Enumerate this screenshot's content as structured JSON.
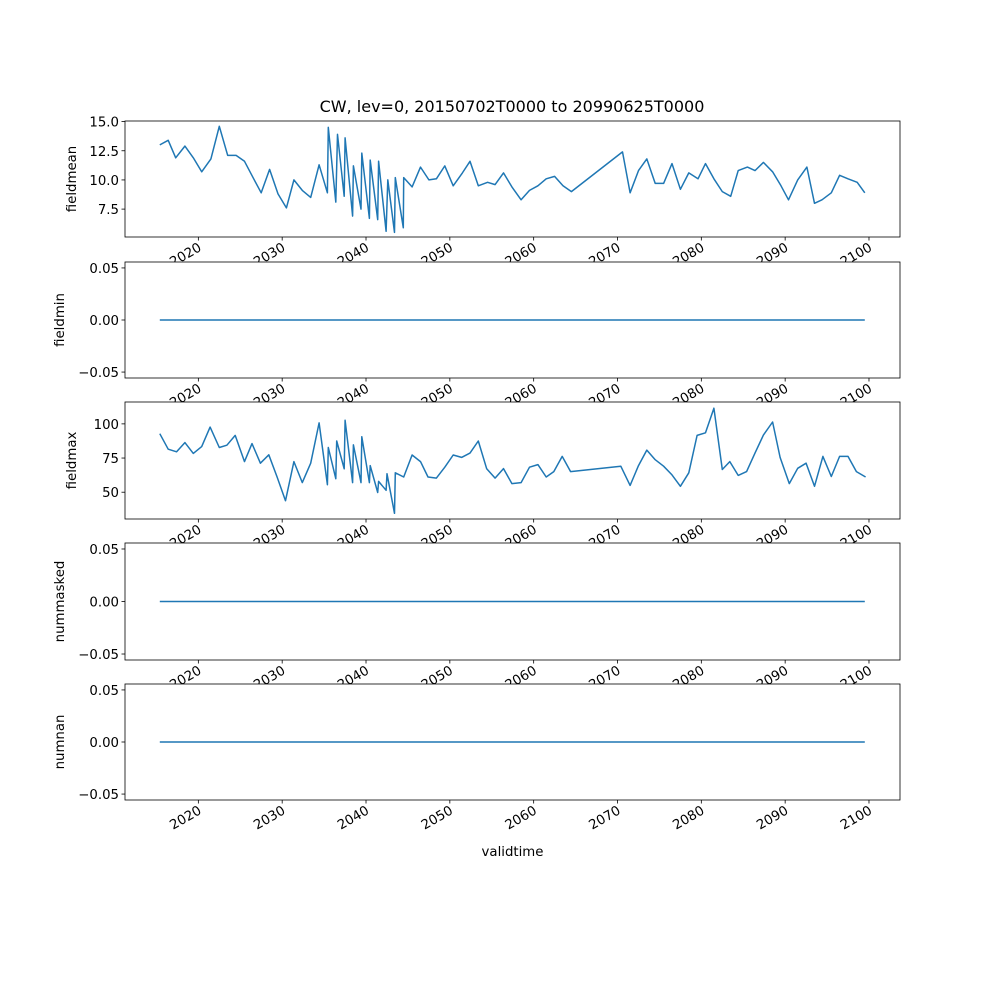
{
  "chart_data": {
    "type": "line",
    "title": "CW, lev=0, 20150702T0000 to 20990625T0000",
    "xlabel": "validtime",
    "xlim": [
      2011.25,
      2103.7
    ],
    "xticks": [
      2020,
      2030,
      2040,
      2050,
      2060,
      2070,
      2080,
      2090,
      2100
    ],
    "xtick_labels": [
      "2020",
      "2030",
      "2040",
      "2050",
      "2060",
      "2070",
      "2080",
      "2090",
      "2100"
    ],
    "line_color": "#1f77b4",
    "panels": [
      {
        "ylabel": "fieldmean",
        "ylim": [
          5.11,
          15.05
        ],
        "yticks": [
          7.5,
          10.0,
          12.5,
          15.0
        ],
        "ytick_labels": [
          "7.5",
          "10.0",
          "12.5",
          "15.0"
        ],
        "x": [
          2015.4,
          2016.4,
          2017.3,
          2018.4,
          2019.4,
          2020.4,
          2021.5,
          2022.5,
          2023.5,
          2024.5,
          2025.5,
          2026.6,
          2027.5,
          2028.5,
          2029.5,
          2030.5,
          2031.4,
          2032.4,
          2033.4,
          2034.4,
          2035.4,
          2035.5,
          2036.4,
          2036.6,
          2037.4,
          2037.5,
          2038.4,
          2038.5,
          2039.4,
          2039.5,
          2040.4,
          2040.5,
          2041.4,
          2041.5,
          2042.4,
          2042.6,
          2043.4,
          2043.5,
          2044.45,
          2044.5,
          2045.5,
          2046.5,
          2047.5,
          2048.4,
          2049.4,
          2050.4,
          2051.5,
          2052.4,
          2053.4,
          2054.5,
          2055.4,
          2056.4,
          2057.4,
          2058.5,
          2059.5,
          2060.5,
          2061.5,
          2062.5,
          2063.5,
          2064.5,
          2070.6,
          2071.5,
          2072.5,
          2073.5,
          2074.5,
          2075.5,
          2076.5,
          2077.5,
          2078.5,
          2079.6,
          2080.5,
          2081.5,
          2082.5,
          2083.5,
          2084.4,
          2085.5,
          2086.4,
          2087.4,
          2088.5,
          2089.5,
          2090.4,
          2091.5,
          2092.6,
          2093.5,
          2094.4,
          2095.5,
          2096.5,
          2097.5,
          2098.6,
          2099.5
        ],
        "y": [
          13.0,
          13.4,
          11.9,
          12.9,
          11.9,
          10.7,
          11.8,
          14.6,
          12.1,
          12.1,
          11.6,
          10.1,
          8.9,
          10.9,
          8.8,
          7.6,
          10.0,
          9.1,
          8.5,
          11.3,
          8.9,
          14.5,
          8.1,
          13.9,
          8.6,
          13.6,
          6.9,
          11.2,
          7.5,
          12.3,
          6.7,
          11.7,
          6.6,
          11.6,
          5.6,
          10.0,
          5.5,
          10.2,
          5.9,
          10.2,
          9.4,
          11.1,
          10.0,
          10.1,
          11.2,
          9.5,
          10.6,
          11.6,
          9.5,
          9.8,
          9.6,
          10.6,
          9.4,
          8.3,
          9.1,
          9.5,
          10.1,
          10.3,
          9.5,
          9.0,
          12.4,
          8.9,
          10.8,
          11.8,
          9.7,
          9.7,
          11.4,
          9.2,
          10.6,
          10.1,
          11.4,
          10.1,
          9.0,
          8.6,
          10.8,
          11.1,
          10.8,
          11.5,
          10.7,
          9.5,
          8.3,
          10.0,
          11.1,
          8.0,
          8.3,
          8.9,
          10.4,
          10.1,
          9.8,
          8.9
        ]
      },
      {
        "ylabel": "fieldmin",
        "ylim": [
          -0.0557,
          0.0557
        ],
        "yticks": [
          -0.05,
          0.0,
          0.05
        ],
        "ytick_labels": [
          "−0.05",
          "0.00",
          "0.05"
        ],
        "x": [
          2015.4,
          2099.5
        ],
        "y": [
          0,
          0
        ]
      },
      {
        "ylabel": "fieldmax",
        "ylim": [
          30.4,
          116.0
        ],
        "yticks": [
          50,
          75,
          100
        ],
        "ytick_labels": [
          "50",
          "75",
          "100"
        ],
        "x": [
          2015.4,
          2016.4,
          2017.4,
          2018.4,
          2019.4,
          2020.4,
          2021.4,
          2022.5,
          2023.4,
          2024.4,
          2025.5,
          2026.4,
          2027.4,
          2028.4,
          2029.4,
          2030.4,
          2031.4,
          2032.4,
          2033.4,
          2034.4,
          2035.4,
          2035.5,
          2036.4,
          2036.5,
          2037.4,
          2037.5,
          2038.4,
          2038.5,
          2039.4,
          2039.5,
          2040.4,
          2040.5,
          2041.4,
          2041.5,
          2042.4,
          2042.5,
          2043.4,
          2043.5,
          2044.5,
          2045.5,
          2046.5,
          2047.4,
          2048.4,
          2049.4,
          2050.4,
          2051.4,
          2052.4,
          2053.4,
          2054.4,
          2055.4,
          2056.4,
          2057.4,
          2058.5,
          2059.5,
          2060.5,
          2061.5,
          2062.4,
          2063.4,
          2064.4,
          2070.4,
          2071.5,
          2072.5,
          2073.5,
          2074.5,
          2075.5,
          2076.5,
          2077.5,
          2078.5,
          2079.5,
          2080.5,
          2081.5,
          2082.5,
          2083.4,
          2084.4,
          2085.4,
          2086.4,
          2087.4,
          2088.5,
          2089.4,
          2090.5,
          2091.5,
          2092.5,
          2093.5,
          2094.5,
          2095.5,
          2096.5,
          2097.5,
          2098.5,
          2099.6
        ],
        "y": [
          92.8,
          81.5,
          79.6,
          86.3,
          78.4,
          83.4,
          97.6,
          82.7,
          84.4,
          91.6,
          72.4,
          85.6,
          71.2,
          77.4,
          61.1,
          43.8,
          72.4,
          57.0,
          71.2,
          100.7,
          55.5,
          82.7,
          59.9,
          87.5,
          67.1,
          102.6,
          57.0,
          84.6,
          57.0,
          90.6,
          57.0,
          69.5,
          49.8,
          57.9,
          51.4,
          63.5,
          34.6,
          64.2,
          61.1,
          77.2,
          72.4,
          61.1,
          60.3,
          68.3,
          77.2,
          75.5,
          78.6,
          87.5,
          67.1,
          60.3,
          67.3,
          56.3,
          57.0,
          68.3,
          70.2,
          61.1,
          65.1,
          76.2,
          65.1,
          69.0,
          55.0,
          69.5,
          80.8,
          73.8,
          69.0,
          62.7,
          54.3,
          64.2,
          91.6,
          93.5,
          111.5,
          66.6,
          72.4,
          62.3,
          65.1,
          78.6,
          91.8,
          101.4,
          75.5,
          56.3,
          67.5,
          71.2,
          54.3,
          76.2,
          61.5,
          76.2,
          76.2,
          65.1,
          61.1
        ]
      },
      {
        "ylabel": "nummasked",
        "ylim": [
          -0.0557,
          0.0557
        ],
        "yticks": [
          -0.05,
          0.0,
          0.05
        ],
        "ytick_labels": [
          "−0.05",
          "0.00",
          "0.05"
        ],
        "x": [
          2015.4,
          2099.5
        ],
        "y": [
          0,
          0
        ]
      },
      {
        "ylabel": "numnan",
        "ylim": [
          -0.0557,
          0.0557
        ],
        "yticks": [
          -0.05,
          0.0,
          0.05
        ],
        "ytick_labels": [
          "−0.05",
          "0.00",
          "0.05"
        ],
        "x": [
          2015.4,
          2099.5
        ],
        "y": [
          0,
          0
        ]
      }
    ]
  }
}
